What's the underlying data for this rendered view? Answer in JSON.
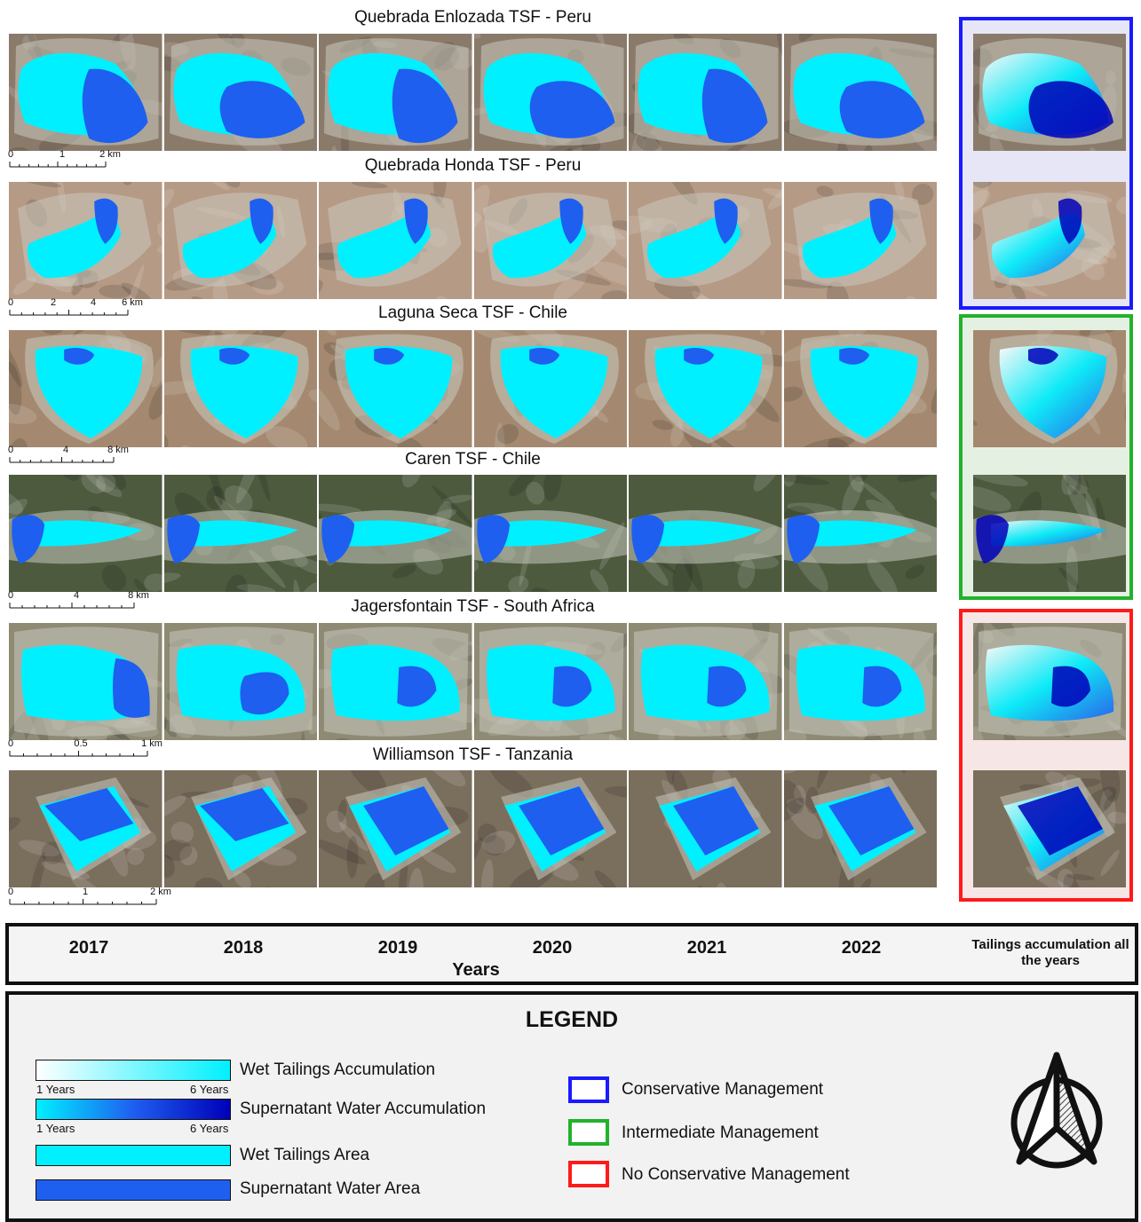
{
  "sites": [
    {
      "title": "Quebrada Enlozada TSF - Peru",
      "scale": [
        "0",
        "1",
        "2 km"
      ],
      "terrain": "#8a7a6a",
      "pattern": "A"
    },
    {
      "title": "Quebrada Honda TSF - Peru",
      "scale": [
        "0",
        "2",
        "4",
        "6 km"
      ],
      "terrain": "#b59a85",
      "pattern": "B"
    },
    {
      "title": "Laguna Seca TSF - Chile",
      "scale": [
        "0",
        "4",
        "8 km"
      ],
      "terrain": "#a48970",
      "pattern": "C"
    },
    {
      "title": "Caren TSF - Chile",
      "scale": [
        "0",
        "4",
        "8 km"
      ],
      "terrain": "#4d5a3e",
      "pattern": "D"
    },
    {
      "title": "Jagersfontain TSF - South Africa",
      "scale": [
        "0",
        "0.5",
        "1 km"
      ],
      "terrain": "#8e8a74",
      "pattern": "E"
    },
    {
      "title": "Williamson TSF - Tanzania",
      "scale": [
        "0",
        "1",
        "2 km"
      ],
      "terrain": "#7a6e5c",
      "pattern": "F"
    }
  ],
  "groups": [
    {
      "label": "Conservative Management",
      "color": "#1a1aff",
      "fill": "#e6e6f6"
    },
    {
      "label": "Intermediate Management",
      "color": "#22b22a",
      "fill": "#e4f1e2"
    },
    {
      "label": "No Conservative Management",
      "color": "#ff1a1a",
      "fill": "#f7e6e6"
    }
  ],
  "years": [
    "2017",
    "2018",
    "2019",
    "2020",
    "2021",
    "2022"
  ],
  "years_axis_label": "Years",
  "accumulation_label": "Tailings accumulation all the years",
  "legend": {
    "title": "LEGEND",
    "wet_accum": "Wet Tailings Accumulation",
    "water_accum": "Supernatant Water Accumulation",
    "wet_area": "Wet Tailings Area",
    "water_area": "Supernatant Water Area",
    "range_min": "1 Years",
    "range_max": "6 Years"
  },
  "colors": {
    "wet_tailings": "#00f0ff",
    "supernatant_water": "#1e5ff0",
    "deep_water": "#0000b8"
  }
}
